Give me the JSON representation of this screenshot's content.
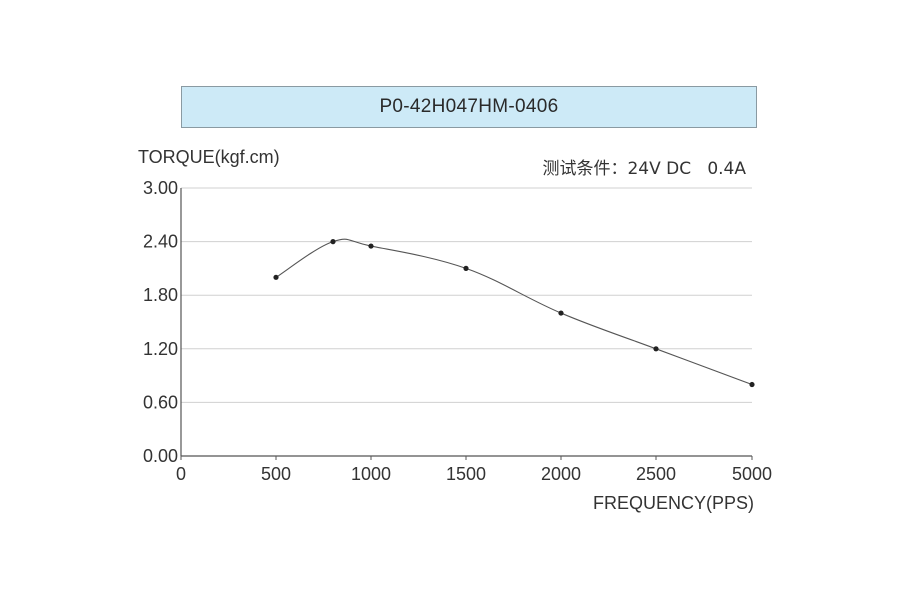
{
  "chart_data": {
    "type": "line",
    "title": "P0-42H047HM-0406",
    "condition": "测试条件：24V DC   0.4A",
    "ylabel": "TORQUE(kgf.cm)",
    "xlabel": "FREQUENCY(PPS)",
    "x_categories": [
      "0",
      "500",
      "1000",
      "1500",
      "2000",
      "2500",
      "5000"
    ],
    "y_ticks": [
      "3.00",
      "2.40",
      "1.80",
      "1.20",
      "0.60",
      "0.00"
    ],
    "ylim": [
      0,
      3
    ],
    "grid": true,
    "series": [
      {
        "x": [
          500,
          800,
          1000,
          1500,
          2000,
          2500,
          5000
        ],
        "y": [
          2.0,
          2.4,
          2.35,
          2.1,
          1.6,
          1.2,
          0.8
        ]
      }
    ],
    "colors": {
      "line": "#555555",
      "marker": "#222222",
      "grid": "#d0d0d0",
      "axis": "#555555",
      "banner": "#cdeaf7"
    }
  }
}
